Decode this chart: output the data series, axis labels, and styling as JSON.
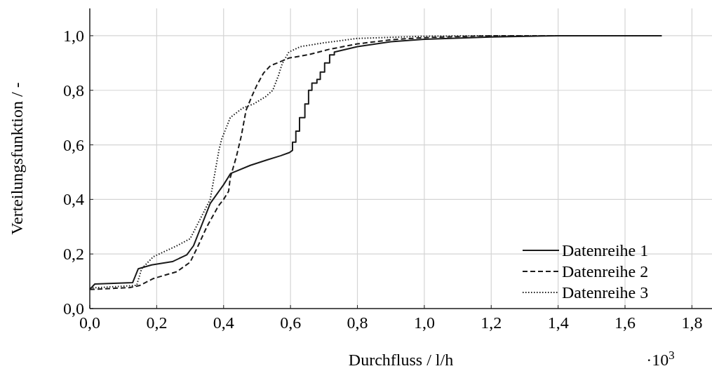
{
  "chart_data": {
    "type": "line",
    "xlabel": "Durchfluss / l/h",
    "ylabel": "Verteilungsfunktion / -",
    "annotations": [
      "·10$^{3}$"
    ],
    "xlim": [
      0,
      1.86
    ],
    "ylim": [
      0,
      1.1
    ],
    "xticks": [
      {
        "value": 0,
        "label": "0,0"
      },
      {
        "value": 0.2,
        "label": "0,2"
      },
      {
        "value": 0.4,
        "label": "0,4"
      },
      {
        "value": 0.6,
        "label": "0,6"
      },
      {
        "value": 0.8,
        "label": "0,8"
      },
      {
        "value": 1.0,
        "label": "1,0"
      },
      {
        "value": 1.2,
        "label": "1,2"
      },
      {
        "value": 1.4,
        "label": "1,4"
      },
      {
        "value": 1.6,
        "label": "1,6"
      },
      {
        "value": 1.8,
        "label": "1,8"
      }
    ],
    "yticks": [
      {
        "value": 0,
        "label": "0,0"
      },
      {
        "value": 0.2,
        "label": "0,2"
      },
      {
        "value": 0.4,
        "label": "0,4"
      },
      {
        "value": 0.6,
        "label": "0,6"
      },
      {
        "value": 0.8,
        "label": "0,8"
      },
      {
        "value": 1.0,
        "label": "1,0"
      }
    ],
    "grid": true,
    "legend": "bottom right",
    "series": [
      {
        "name": "Datenreihe 1",
        "color": "#1a1a1a",
        "line_style": "solid",
        "x": [
          0,
          0.015,
          0.128,
          0.145,
          0.185,
          0.247,
          0.29,
          0.31,
          0.36,
          0.4,
          0.421,
          0.48,
          0.53,
          0.57,
          0.597,
          0.606,
          0.606,
          0.616,
          0.616,
          0.627,
          0.627,
          0.643,
          0.643,
          0.654,
          0.654,
          0.664,
          0.664,
          0.679,
          0.679,
          0.689,
          0.689,
          0.702,
          0.702,
          0.717,
          0.717,
          0.731,
          0.731,
          0.8,
          0.9,
          1.0,
          1.2,
          1.4,
          1.71
        ],
        "values": [
          0.07,
          0.09,
          0.095,
          0.146,
          0.16,
          0.172,
          0.197,
          0.23,
          0.385,
          0.454,
          0.495,
          0.525,
          0.545,
          0.56,
          0.572,
          0.58,
          0.61,
          0.61,
          0.65,
          0.65,
          0.7,
          0.7,
          0.75,
          0.75,
          0.8,
          0.8,
          0.826,
          0.826,
          0.84,
          0.84,
          0.867,
          0.867,
          0.9,
          0.9,
          0.93,
          0.93,
          0.94,
          0.96,
          0.978,
          0.987,
          0.995,
          1.0,
          1.0
        ]
      },
      {
        "name": "Datenreihe 2",
        "color": "#1a1a1a",
        "line_style": "dashed",
        "x": [
          0,
          0.12,
          0.15,
          0.19,
          0.26,
          0.3,
          0.32,
          0.35,
          0.385,
          0.4,
          0.415,
          0.42,
          0.438,
          0.453,
          0.467,
          0.484,
          0.5,
          0.52,
          0.54,
          0.56,
          0.595,
          0.652,
          0.715,
          0.8,
          0.9,
          1.0,
          1.2,
          1.71
        ],
        "values": [
          0.07,
          0.077,
          0.085,
          0.11,
          0.135,
          0.17,
          0.22,
          0.3,
          0.377,
          0.4,
          0.43,
          0.48,
          0.556,
          0.633,
          0.726,
          0.777,
          0.82,
          0.864,
          0.89,
          0.9,
          0.918,
          0.93,
          0.95,
          0.97,
          0.985,
          0.993,
          1.0,
          1.0
        ]
      },
      {
        "name": "Datenreihe 3",
        "color": "#1a1a1a",
        "line_style": "dotted",
        "x": [
          0,
          0.14,
          0.155,
          0.19,
          0.26,
          0.3,
          0.36,
          0.386,
          0.394,
          0.42,
          0.457,
          0.49,
          0.526,
          0.547,
          0.564,
          0.575,
          0.595,
          0.63,
          0.7,
          0.8,
          1.0,
          1.2,
          1.71
        ],
        "values": [
          0.075,
          0.085,
          0.146,
          0.19,
          0.23,
          0.256,
          0.4,
          0.58,
          0.62,
          0.7,
          0.735,
          0.75,
          0.777,
          0.8,
          0.854,
          0.897,
          0.94,
          0.96,
          0.974,
          0.99,
          0.998,
          1.0,
          1.0
        ]
      }
    ]
  }
}
